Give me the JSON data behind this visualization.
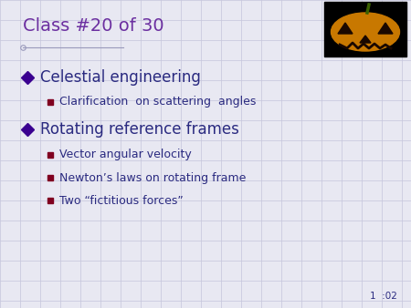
{
  "title": "Class #20 of 30",
  "title_color": "#6b2fa0",
  "title_fontsize": 14,
  "bg_color": "#e8e8f2",
  "grid_color": "#c5c5dc",
  "bullet1_text": "Celestial engineering",
  "bullet1_color": "#2a2a80",
  "sub1_text": "Clarification  on scattering  angles",
  "sub1_color": "#2a2a80",
  "bullet2_text": "Rotating reference frames",
  "bullet2_color": "#2a2a80",
  "sub2_text": "Vector angular velocity",
  "sub2_color": "#2a2a80",
  "sub3_text": "Newton’s laws on rotating frame",
  "sub3_color": "#2a2a80",
  "sub4_text": "Two “fictitious forces”",
  "sub4_color": "#2a2a80",
  "diamond_color": "#3a0090",
  "square_color": "#800020",
  "footer_text": "1  :02",
  "footer_color": "#2a2a80",
  "line_color": "#9999bb",
  "crosshair_color": "#9999bb"
}
